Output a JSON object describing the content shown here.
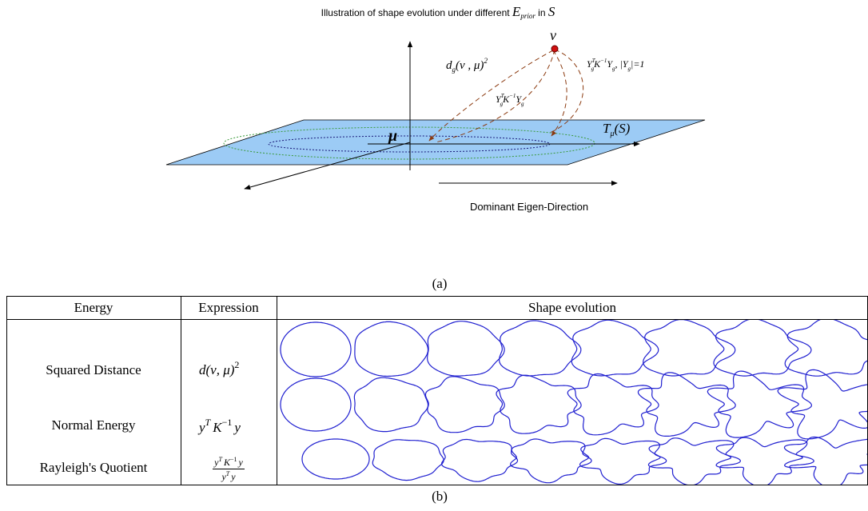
{
  "figure_a": {
    "title": [
      "Illustration of shape evolution under different",
      "E",
      "prior",
      "in",
      "S"
    ],
    "nu": "ν",
    "mu": "μ",
    "distance": [
      "d",
      "g",
      "(ν , μ)",
      "2"
    ],
    "unit_path": [
      "Y",
      "T",
      "g",
      "K",
      "−1",
      "Y",
      "g",
      ", |Y",
      "g",
      "|=1"
    ],
    "normal_path": [
      "Y",
      "T",
      "g",
      "K",
      "−1",
      "Y",
      "g"
    ],
    "tangent": [
      "T",
      "μ",
      "(S)"
    ],
    "direction": "Dominant Eigen-Direction",
    "caption": "(a)"
  },
  "table": {
    "header": [
      "Energy",
      "Expression",
      "Shape evolution"
    ],
    "rows": [
      {
        "energy": "Squared Distance",
        "expression": [
          "d(ν, μ)",
          "2"
        ]
      },
      {
        "energy": "Normal Energy",
        "expression": [
          "y",
          "T",
          "K",
          "−1",
          "y"
        ]
      },
      {
        "energy": "Rayleigh's Quotient",
        "numerator": [
          "y",
          "T",
          "K",
          "−1",
          "y"
        ],
        "denominator": [
          "y",
          "T",
          "y"
        ]
      }
    ],
    "caption": "(b)"
  }
}
